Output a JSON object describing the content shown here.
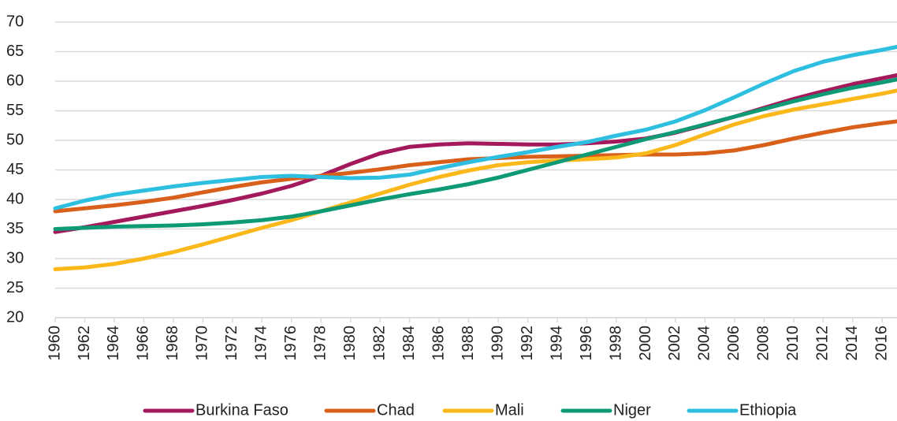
{
  "chart_data": {
    "type": "line",
    "x": [
      1960,
      1962,
      1964,
      1966,
      1968,
      1970,
      1972,
      1974,
      1976,
      1978,
      1980,
      1982,
      1984,
      1986,
      1988,
      1990,
      1992,
      1994,
      1996,
      1998,
      2000,
      2002,
      2004,
      2006,
      2008,
      2010,
      2012,
      2014,
      2016,
      2017
    ],
    "series": [
      {
        "name": "Burkina Faso",
        "color": "#a3195b",
        "values": [
          34.5,
          35.3,
          36.2,
          37.1,
          38,
          38.9,
          39.9,
          41,
          42.3,
          44,
          46,
          47.8,
          48.9,
          49.3,
          49.5,
          49.4,
          49.3,
          49.3,
          49.5,
          49.8,
          50.3,
          51.3,
          52.6,
          54,
          55.5,
          57,
          58.3,
          59.5,
          60.5,
          61
        ]
      },
      {
        "name": "Chad",
        "color": "#d8601a",
        "values": [
          38,
          38.5,
          39,
          39.6,
          40.3,
          41.2,
          42.1,
          42.9,
          43.5,
          44,
          44.5,
          45.1,
          45.8,
          46.3,
          46.8,
          47,
          47.2,
          47.3,
          47.4,
          47.5,
          47.6,
          47.6,
          47.8,
          48.3,
          49.2,
          50.3,
          51.3,
          52.2,
          52.9,
          53.2
        ]
      },
      {
        "name": "Mali",
        "color": "#fbb81a",
        "values": [
          28.2,
          28.5,
          29.1,
          30,
          31.1,
          32.4,
          33.8,
          35.2,
          36.5,
          38,
          39.5,
          41,
          42.5,
          43.8,
          44.9,
          45.8,
          46.3,
          46.6,
          46.8,
          47.1,
          47.8,
          49.2,
          51,
          52.7,
          54.1,
          55.2,
          56.1,
          57,
          57.9,
          58.4
        ]
      },
      {
        "name": "Niger",
        "color": "#0d9a74",
        "values": [
          35,
          35.2,
          35.4,
          35.5,
          35.6,
          35.8,
          36.1,
          36.5,
          37.1,
          38,
          39,
          40,
          40.9,
          41.7,
          42.6,
          43.7,
          45,
          46.3,
          47.6,
          48.9,
          50.2,
          51.4,
          52.7,
          54,
          55.3,
          56.6,
          57.8,
          58.9,
          59.8,
          60.3
        ]
      },
      {
        "name": "Ethiopia",
        "color": "#2ebfe0",
        "values": [
          38.5,
          39.8,
          40.8,
          41.5,
          42.2,
          42.8,
          43.3,
          43.8,
          44,
          43.8,
          43.6,
          43.7,
          44.2,
          45.3,
          46.3,
          47.2,
          48,
          48.9,
          49.7,
          50.8,
          51.8,
          53.2,
          55.1,
          57.3,
          59.6,
          61.7,
          63.3,
          64.4,
          65.3,
          65.8
        ]
      }
    ],
    "xlim": [
      1960,
      2017
    ],
    "xticks": [
      1960,
      1962,
      1964,
      1966,
      1968,
      1970,
      1972,
      1974,
      1976,
      1978,
      1980,
      1982,
      1984,
      1986,
      1988,
      1990,
      1992,
      1994,
      1996,
      1998,
      2000,
      2002,
      2004,
      2006,
      2008,
      2010,
      2012,
      2014,
      2016
    ],
    "ylim": [
      20,
      70
    ],
    "yticks": [
      20,
      25,
      30,
      35,
      40,
      45,
      50,
      55,
      60,
      65,
      70
    ],
    "grid": true,
    "legend": "bottom"
  }
}
